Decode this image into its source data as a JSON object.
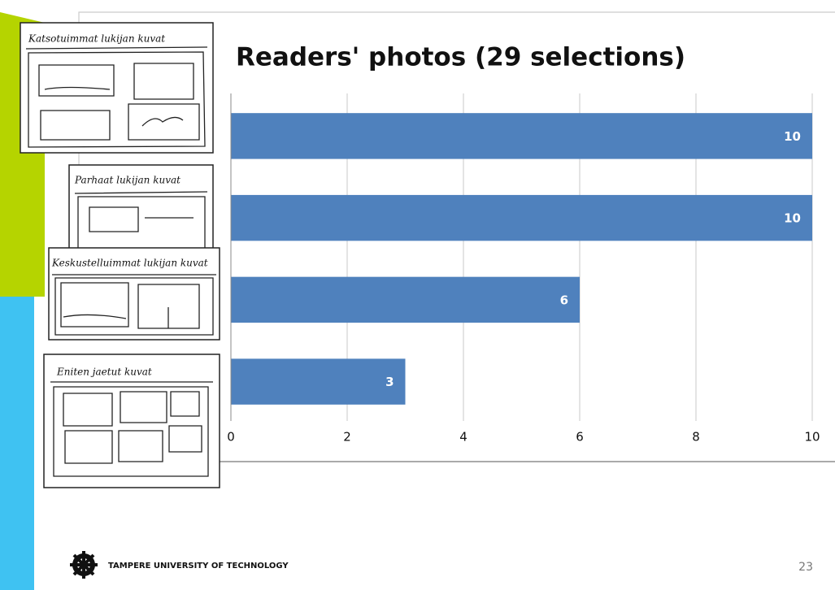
{
  "chart_data": {
    "type": "bar",
    "orientation": "horizontal",
    "title": "Readers' photos (29 selections)",
    "categories": [
      "Katsotuimmat lukijan kuvat",
      "Parhaat lukijan kuvat",
      "Keskustelluimmat lukijan kuvat",
      "Eniten jaetut kuvat"
    ],
    "values": [
      10,
      10,
      6,
      3
    ],
    "color": "#4f81bd",
    "xlim": [
      0,
      10
    ],
    "xticks": [
      0,
      2,
      4,
      6,
      8,
      10
    ],
    "grid": true
  },
  "footer": {
    "institution": "TAMPERE UNIVERSITY OF TECHNOLOGY",
    "page_number": "23"
  }
}
